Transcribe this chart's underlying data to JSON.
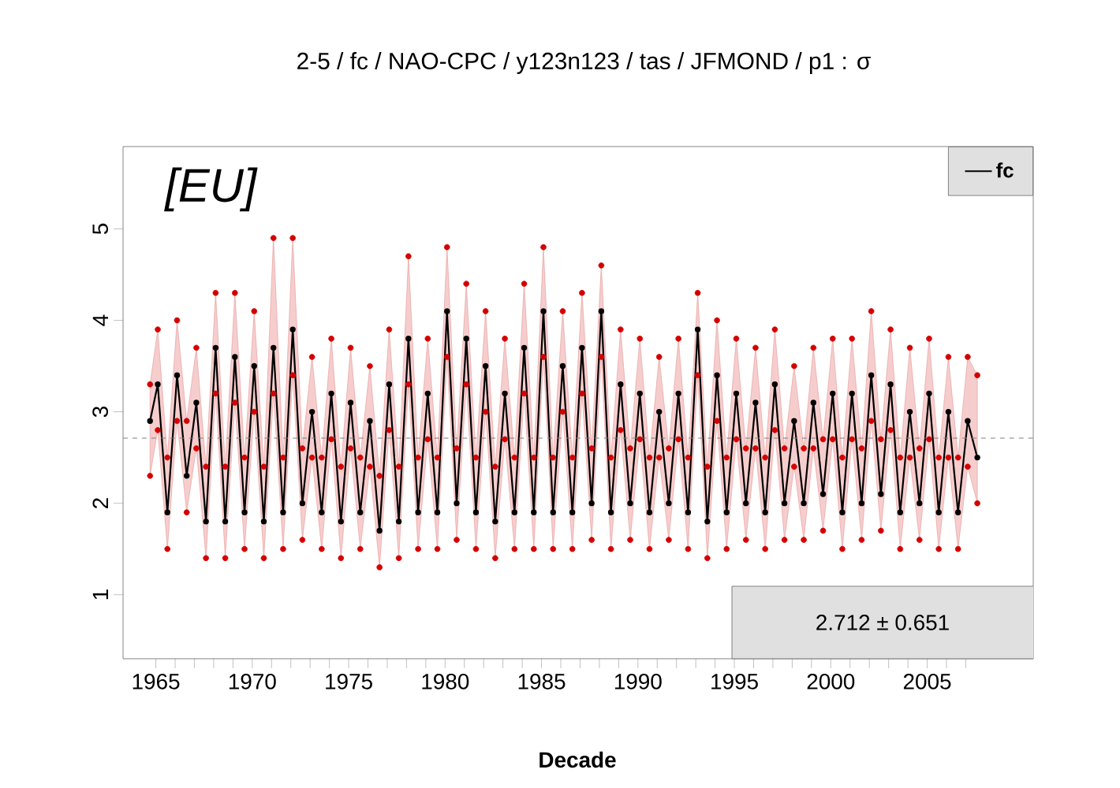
{
  "chart_data": {
    "type": "line",
    "title": "2-5 / fc / NAO-CPC / y123n123 / tas / JFMOND / p1 : σ",
    "xlabel": "Decade",
    "xlim": [
      1963.3,
      2010.5
    ],
    "ylim": [
      0.3,
      5.9
    ],
    "xticks": [
      1965,
      {
        "value": 1966,
        "label": null
      },
      {
        "value": 1967,
        "label": null
      },
      {
        "value": 1968,
        "label": null
      },
      {
        "value": 1969,
        "label": null
      },
      1970,
      {
        "value": 1971,
        "label": null
      },
      {
        "value": 1972,
        "label": null
      },
      {
        "value": 1973,
        "label": null
      },
      {
        "value": 1974,
        "label": null
      },
      1975,
      {
        "value": 1976,
        "label": null
      },
      {
        "value": 1977,
        "label": null
      },
      {
        "value": 1978,
        "label": null
      },
      {
        "value": 1979,
        "label": null
      },
      1980,
      {
        "value": 1981,
        "label": null
      },
      {
        "value": 1982,
        "label": null
      },
      {
        "value": 1983,
        "label": null
      },
      {
        "value": 1984,
        "label": null
      },
      1985,
      {
        "value": 1986,
        "label": null
      },
      {
        "value": 1987,
        "label": null
      },
      {
        "value": 1988,
        "label": null
      },
      {
        "value": 1989,
        "label": null
      },
      1990,
      {
        "value": 1991,
        "label": null
      },
      {
        "value": 1992,
        "label": null
      },
      {
        "value": 1993,
        "label": null
      },
      {
        "value": 1994,
        "label": null
      },
      1995,
      {
        "value": 1996,
        "label": null
      },
      {
        "value": 1997,
        "label": null
      },
      {
        "value": 1998,
        "label": null
      },
      {
        "value": 1999,
        "label": null
      },
      2000,
      {
        "value": 2001,
        "label": null
      },
      {
        "value": 2002,
        "label": null
      },
      {
        "value": 2003,
        "label": null
      },
      {
        "value": 2004,
        "label": null
      },
      2005,
      {
        "value": 2006,
        "label": null
      },
      {
        "value": 2007,
        "label": null
      }
    ],
    "yticks": [
      1,
      2,
      3,
      4,
      5
    ],
    "legend": "top right",
    "annotations": [
      "[EU]",
      "2.712 ± 0.651"
    ],
    "ref_lines": [
      {
        "axis": "y",
        "value": 2.712,
        "color": "#808080",
        "line_style": "dashed"
      }
    ],
    "series": [
      {
        "name": "fc",
        "color": "#000000",
        "marker": "circle",
        "x": [
          1964.7,
          1965.1,
          1965.6,
          1966.1,
          1966.6,
          1967.1,
          1967.6,
          1968.1,
          1968.6,
          1969.1,
          1969.6,
          1970.1,
          1970.6,
          1971.1,
          1971.6,
          1972.1,
          1972.6,
          1973.1,
          1973.6,
          1974.1,
          1974.6,
          1975.1,
          1975.6,
          1976.1,
          1976.6,
          1977.1,
          1977.6,
          1978.1,
          1978.6,
          1979.1,
          1979.6,
          1980.1,
          1980.6,
          1981.1,
          1981.6,
          1982.1,
          1982.6,
          1983.1,
          1983.6,
          1984.1,
          1984.6,
          1985.1,
          1985.6,
          1986.1,
          1986.6,
          1987.1,
          1987.6,
          1988.1,
          1988.6,
          1989.1,
          1989.6,
          1990.1,
          1990.6,
          1991.1,
          1991.6,
          1992.1,
          1992.6,
          1993.1,
          1993.6,
          1994.1,
          1994.6,
          1995.1,
          1995.6,
          1996.1,
          1996.6,
          1997.1,
          1997.6,
          1998.1,
          1998.6,
          1999.1,
          1999.6,
          2000.1,
          2000.6,
          2001.1,
          2001.6,
          2002.1,
          2002.6,
          2003.1,
          2003.6,
          2004.1,
          2004.6,
          2005.1,
          2005.6,
          2006.1,
          2006.6,
          2007.1,
          2007.6
        ],
        "values": [
          2.9,
          3.3,
          1.9,
          3.4,
          2.3,
          3.1,
          1.8,
          3.7,
          1.8,
          3.6,
          1.9,
          3.5,
          1.8,
          3.7,
          1.9,
          3.9,
          2.0,
          3.0,
          1.9,
          3.2,
          1.8,
          3.1,
          1.9,
          2.9,
          1.7,
          3.3,
          1.8,
          3.8,
          1.9,
          3.2,
          1.9,
          4.1,
          2.0,
          3.8,
          1.9,
          3.5,
          1.8,
          3.2,
          1.9,
          3.7,
          1.9,
          4.1,
          1.9,
          3.5,
          1.9,
          3.7,
          2.0,
          4.1,
          1.9,
          3.3,
          2.0,
          3.2,
          1.9,
          3.0,
          2.0,
          3.2,
          1.9,
          3.9,
          1.8,
          3.4,
          1.9,
          3.2,
          2.0,
          3.1,
          1.9,
          3.3,
          2.0,
          2.9,
          2.0,
          3.1,
          2.1,
          3.2,
          1.9,
          3.2,
          2.0,
          3.4,
          2.1,
          3.3,
          1.9,
          3.0,
          2.0,
          3.2,
          1.9,
          3.0,
          1.9,
          2.9,
          2.5
        ],
        "upper": [
          3.3,
          3.9,
          2.5,
          4.0,
          2.9,
          3.7,
          2.4,
          4.3,
          2.4,
          4.3,
          2.5,
          4.1,
          2.4,
          4.9,
          2.5,
          4.9,
          2.6,
          3.6,
          2.5,
          3.8,
          2.4,
          3.7,
          2.5,
          3.5,
          2.3,
          3.9,
          2.4,
          4.7,
          2.5,
          3.8,
          2.5,
          4.8,
          2.6,
          4.4,
          2.5,
          4.1,
          2.4,
          3.8,
          2.5,
          4.4,
          2.5,
          4.8,
          2.5,
          4.1,
          2.5,
          4.3,
          2.6,
          4.6,
          2.5,
          3.9,
          2.6,
          3.8,
          2.5,
          3.6,
          2.6,
          3.8,
          2.5,
          4.3,
          2.4,
          4.0,
          2.5,
          3.8,
          2.6,
          3.7,
          2.5,
          3.9,
          2.6,
          3.5,
          2.6,
          3.7,
          2.7,
          3.8,
          2.5,
          3.8,
          2.6,
          4.1,
          2.7,
          3.9,
          2.5,
          3.7,
          2.6,
          3.8,
          2.5,
          3.6,
          2.5,
          3.6,
          3.4
        ],
        "lower": [
          2.3,
          2.8,
          1.5,
          2.9,
          1.9,
          2.6,
          1.4,
          3.2,
          1.4,
          3.1,
          1.5,
          3.0,
          1.4,
          3.2,
          1.5,
          3.4,
          1.6,
          2.5,
          1.5,
          2.7,
          1.4,
          2.6,
          1.5,
          2.4,
          1.3,
          2.8,
          1.4,
          3.3,
          1.5,
          2.7,
          1.5,
          3.6,
          1.6,
          3.3,
          1.5,
          3.0,
          1.4,
          2.7,
          1.5,
          3.2,
          1.5,
          3.6,
          1.5,
          3.0,
          1.5,
          3.2,
          1.6,
          3.6,
          1.5,
          2.8,
          1.6,
          2.7,
          1.5,
          2.5,
          1.6,
          2.7,
          1.5,
          3.4,
          1.4,
          2.9,
          1.5,
          2.7,
          1.6,
          2.6,
          1.5,
          2.8,
          1.6,
          2.4,
          1.6,
          2.6,
          1.7,
          2.7,
          1.5,
          2.7,
          1.6,
          2.9,
          1.7,
          2.8,
          1.5,
          2.5,
          1.6,
          2.7,
          1.5,
          2.5,
          1.5,
          2.4,
          2.0
        ]
      },
      {
        "type": "scatter",
        "color": "#d40000",
        "marker": "circle",
        "x": [
          1964.7,
          1965.1,
          1965.6,
          1966.1,
          1966.6,
          1967.1,
          1967.6,
          1968.1,
          1968.6,
          1969.1,
          1969.6,
          1970.1,
          1970.6,
          1971.1,
          1971.6,
          1972.1,
          1972.6,
          1973.1,
          1973.6,
          1974.1,
          1974.6,
          1975.1,
          1975.6,
          1976.1,
          1976.6,
          1977.1,
          1977.6,
          1978.1,
          1978.6,
          1979.1,
          1979.6,
          1980.1,
          1980.6,
          1981.1,
          1981.6,
          1982.1,
          1982.6,
          1983.1,
          1983.6,
          1984.1,
          1984.6,
          1985.1,
          1985.6,
          1986.1,
          1986.6,
          1987.1,
          1987.6,
          1988.1,
          1988.6,
          1989.1,
          1989.6,
          1990.1,
          1990.6,
          1991.1,
          1991.6,
          1992.1,
          1992.6,
          1993.1,
          1993.6,
          1994.1,
          1994.6,
          1995.1,
          1995.6,
          1996.1,
          1996.6,
          1997.1,
          1997.6,
          1998.1,
          1998.6,
          1999.1,
          1999.6,
          2000.1,
          2000.6,
          2001.1,
          2001.6,
          2002.1,
          2002.6,
          2003.1,
          2003.6,
          2004.1,
          2004.6,
          2005.1,
          2005.6,
          2006.1,
          2006.6,
          2007.1,
          2007.6,
          1964.7,
          1965.1,
          1965.6,
          1966.1,
          1966.6,
          1967.1,
          1967.6,
          1968.1,
          1968.6,
          1969.1,
          1969.6,
          1970.1,
          1970.6,
          1971.1,
          1971.6,
          1972.1,
          1972.6,
          1973.1,
          1973.6,
          1974.1,
          1974.6,
          1975.1,
          1975.6,
          1976.1,
          1976.6,
          1977.1,
          1977.6,
          1978.1,
          1978.6,
          1979.1,
          1979.6,
          1980.1,
          1980.6,
          1981.1,
          1981.6,
          1982.1,
          1982.6,
          1983.1,
          1983.6,
          1984.1,
          1984.6,
          1985.1,
          1985.6,
          1986.1,
          1986.6,
          1987.1,
          1987.6,
          1988.1,
          1988.6,
          1989.1,
          1989.6,
          1990.1,
          1990.6,
          1991.1,
          1991.6,
          1992.1,
          1992.6,
          1993.1,
          1993.6,
          1994.1,
          1994.6,
          1995.1,
          1995.6,
          1996.1,
          1996.6,
          1997.1,
          1997.6,
          1998.1,
          1998.6,
          1999.1,
          1999.6,
          2000.1,
          2000.6,
          2001.1,
          2001.6,
          2002.1,
          2002.6,
          2003.1,
          2003.6,
          2004.1,
          2004.6,
          2005.1,
          2005.6,
          2006.1,
          2006.6,
          2007.1,
          2007.6
        ],
        "values": [
          3.3,
          3.9,
          2.5,
          4.0,
          2.9,
          3.7,
          2.4,
          4.3,
          2.4,
          4.3,
          2.5,
          4.1,
          2.4,
          4.9,
          2.5,
          4.9,
          2.6,
          3.6,
          2.5,
          3.8,
          2.4,
          3.7,
          2.5,
          3.5,
          2.3,
          3.9,
          2.4,
          4.7,
          2.5,
          3.8,
          2.5,
          4.8,
          2.6,
          4.4,
          2.5,
          4.1,
          2.4,
          3.8,
          2.5,
          4.4,
          2.5,
          4.8,
          2.5,
          4.1,
          2.5,
          4.3,
          2.6,
          4.6,
          2.5,
          3.9,
          2.6,
          3.8,
          2.5,
          3.6,
          2.6,
          3.8,
          2.5,
          4.3,
          2.4,
          4.0,
          2.5,
          3.8,
          2.6,
          3.7,
          2.5,
          3.9,
          2.6,
          3.5,
          2.6,
          3.7,
          2.7,
          3.8,
          2.5,
          3.8,
          2.6,
          4.1,
          2.7,
          3.9,
          2.5,
          3.7,
          2.6,
          3.8,
          2.5,
          3.6,
          2.5,
          3.6,
          3.4,
          2.3,
          2.8,
          1.5,
          2.9,
          1.9,
          2.6,
          1.4,
          3.2,
          1.4,
          3.1,
          1.5,
          3.0,
          1.4,
          3.2,
          1.5,
          3.4,
          1.6,
          2.5,
          1.5,
          2.7,
          1.4,
          2.6,
          1.5,
          2.4,
          1.3,
          2.8,
          1.4,
          3.3,
          1.5,
          2.7,
          1.5,
          3.6,
          1.6,
          3.3,
          1.5,
          3.0,
          1.4,
          2.7,
          1.5,
          3.2,
          1.5,
          3.6,
          1.5,
          3.0,
          1.5,
          3.2,
          1.6,
          3.6,
          1.5,
          2.8,
          1.6,
          2.7,
          1.5,
          2.5,
          1.6,
          2.7,
          1.5,
          3.4,
          1.4,
          2.9,
          1.5,
          2.7,
          1.6,
          2.6,
          1.5,
          2.8,
          1.6,
          2.4,
          1.6,
          2.6,
          1.7,
          2.7,
          1.5,
          2.7,
          1.6,
          2.9,
          1.7,
          2.8,
          1.5,
          2.5,
          1.6,
          2.7,
          1.5,
          2.5,
          1.5,
          2.4,
          2.0
        ]
      }
    ]
  }
}
